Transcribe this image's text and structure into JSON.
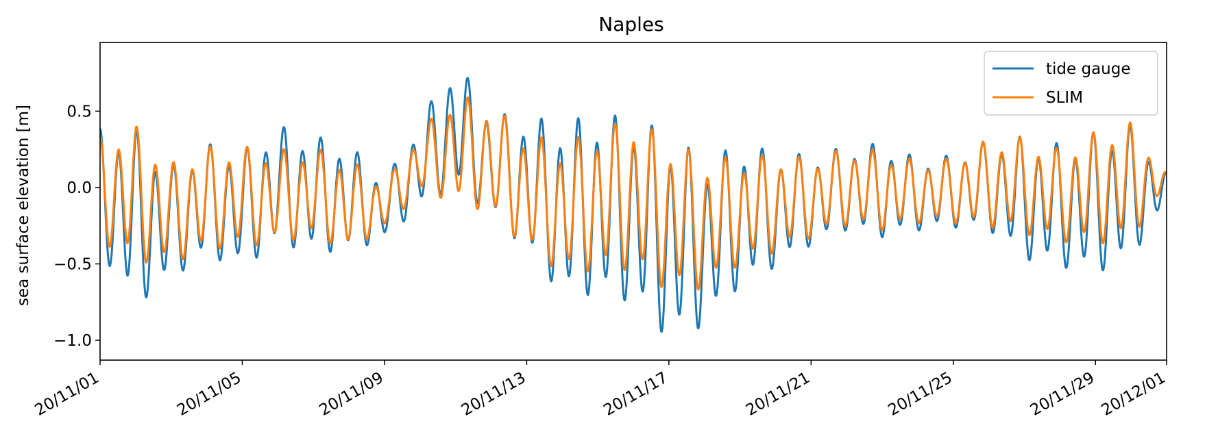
{
  "chart_data": {
    "type": "line",
    "title": "Naples",
    "xlabel": "",
    "ylabel": "sea surface elevation [m]",
    "x_range": [
      "2020-11-01",
      "2020-12-01"
    ],
    "ylim": [
      -1.13,
      0.95
    ],
    "x_ticks": [
      {
        "date": "2020-11-01",
        "label": "20/11/01"
      },
      {
        "date": "2020-11-05",
        "label": "20/11/05"
      },
      {
        "date": "2020-11-09",
        "label": "20/11/09"
      },
      {
        "date": "2020-11-13",
        "label": "20/11/13"
      },
      {
        "date": "2020-11-17",
        "label": "20/11/17"
      },
      {
        "date": "2020-11-21",
        "label": "20/11/21"
      },
      {
        "date": "2020-11-25",
        "label": "20/11/25"
      },
      {
        "date": "2020-11-29",
        "label": "20/11/29"
      },
      {
        "date": "2020-12-01",
        "label": "20/12/01"
      }
    ],
    "y_ticks": [
      {
        "value": -1.0,
        "label": "−1.0"
      },
      {
        "value": -0.5,
        "label": "−0.5"
      },
      {
        "value": 0.0,
        "label": "0.0"
      },
      {
        "value": 0.5,
        "label": "0.5"
      }
    ],
    "grid": false,
    "legend_position": "top-right",
    "series": [
      {
        "name": "tide gauge",
        "color": "#1f77b4",
        "x": [
          "2020-11-01",
          "2020-11-02",
          "2020-11-03",
          "2020-11-04",
          "2020-11-05",
          "2020-11-06",
          "2020-11-07",
          "2020-11-08",
          "2020-11-09",
          "2020-11-10",
          "2020-11-11",
          "2020-11-12",
          "2020-11-13",
          "2020-11-14",
          "2020-11-15",
          "2020-11-16",
          "2020-11-17",
          "2020-11-18",
          "2020-11-19",
          "2020-11-20",
          "2020-11-21",
          "2020-11-22",
          "2020-11-23",
          "2020-11-24",
          "2020-11-25",
          "2020-11-26",
          "2020-11-27",
          "2020-11-28",
          "2020-11-29",
          "2020-11-30",
          "2020-12-01"
        ],
        "high": [
          0.4,
          0.4,
          0.15,
          0.3,
          0.25,
          0.42,
          0.35,
          0.3,
          0.05,
          0.45,
          0.85,
          0.5,
          0.48,
          0.45,
          0.5,
          0.48,
          0.38,
          0.2,
          0.3,
          0.25,
          0.22,
          0.28,
          0.3,
          0.2,
          0.22,
          0.32,
          0.35,
          0.3,
          0.38,
          0.42,
          0.1
        ],
        "low": [
          -0.45,
          -0.82,
          -0.62,
          -0.48,
          -0.55,
          -0.4,
          -0.45,
          -0.45,
          -0.35,
          -0.15,
          -0.02,
          -0.2,
          -0.45,
          -0.75,
          -0.75,
          -0.8,
          -1.05,
          -0.95,
          -0.68,
          -0.55,
          -0.4,
          -0.3,
          -0.35,
          -0.3,
          -0.28,
          -0.3,
          -0.5,
          -0.55,
          -0.6,
          -0.5,
          -0.1
        ]
      },
      {
        "name": "SLIM",
        "color": "#ff7f0e",
        "x": [
          "2020-11-01",
          "2020-11-02",
          "2020-11-03",
          "2020-11-04",
          "2020-11-05",
          "2020-11-06",
          "2020-11-07",
          "2020-11-08",
          "2020-11-09",
          "2020-11-10",
          "2020-11-11",
          "2020-11-12",
          "2020-11-13",
          "2020-11-14",
          "2020-11-15",
          "2020-11-16",
          "2020-11-17",
          "2020-11-18",
          "2020-11-19",
          "2020-11-20",
          "2020-11-21",
          "2020-11-22",
          "2020-11-23",
          "2020-11-24",
          "2020-11-25",
          "2020-11-26",
          "2020-11-27",
          "2020-11-28",
          "2020-11-29",
          "2020-11-30",
          "2020-12-01"
        ],
        "high": [
          0.35,
          0.42,
          0.17,
          0.28,
          0.28,
          0.26,
          0.27,
          0.2,
          0.03,
          0.38,
          0.63,
          0.55,
          0.37,
          0.3,
          0.4,
          0.47,
          0.33,
          0.21,
          0.21,
          0.23,
          0.2,
          0.27,
          0.25,
          0.18,
          0.2,
          0.33,
          0.34,
          0.26,
          0.38,
          0.44,
          0.1
        ],
        "low": [
          -0.38,
          -0.52,
          -0.53,
          -0.43,
          -0.42,
          -0.38,
          -0.35,
          -0.43,
          -0.28,
          -0.05,
          -0.12,
          -0.2,
          -0.43,
          -0.6,
          -0.58,
          -0.58,
          -0.72,
          -0.7,
          -0.53,
          -0.45,
          -0.35,
          -0.27,
          -0.3,
          -0.25,
          -0.25,
          -0.28,
          -0.33,
          -0.38,
          -0.4,
          -0.37,
          0.0
        ]
      }
    ]
  }
}
